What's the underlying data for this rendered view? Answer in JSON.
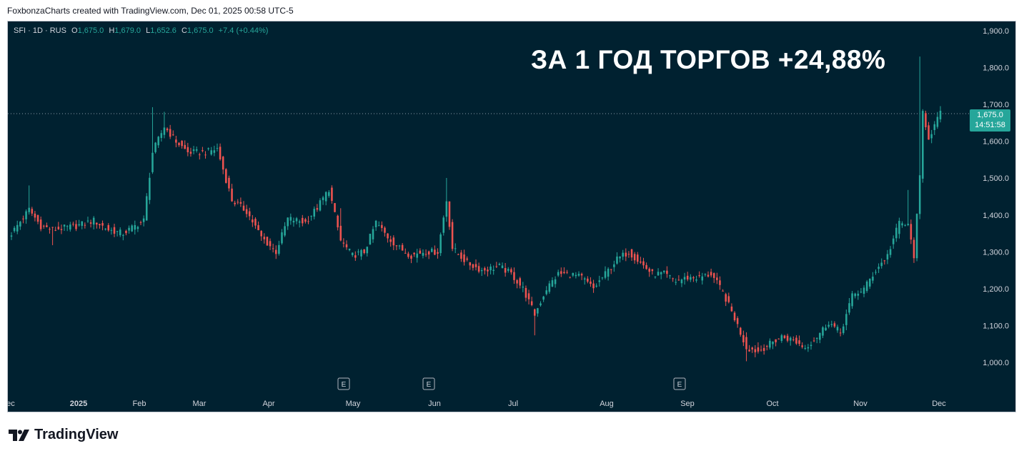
{
  "header": "FoxbonzaCharts created with TradingView.com, Dec 01, 2025 00:58 UTC-5",
  "legend": {
    "symbol": "SFI · 1D · RUS",
    "open_label": "O",
    "open": "1,675.0",
    "high_label": "H",
    "high": "1,679.0",
    "low_label": "L",
    "low": "1,652.6",
    "close_label": "C",
    "close": "1,675.0",
    "change": "+7.4 (+0.44%)"
  },
  "headline": "ЗА 1 ГОД ТОРГОВ +24,88%",
  "price_tag": {
    "price": "1,675.0",
    "countdown": "14:51:58"
  },
  "footer": {
    "brand": "TradingView",
    "icon": "tradingview-logo-icon"
  },
  "colors": {
    "background": "#002130",
    "up": "#26a69a",
    "down": "#ef5350",
    "text": "#d1d4dc"
  },
  "chart_data": {
    "type": "candlestick",
    "y_ticks": [
      "1,900.0",
      "1,800.0",
      "1,700.0",
      "1,600.0",
      "1,500.0",
      "1,400.0",
      "1,300.0",
      "1,200.0",
      "1,100.0",
      "1,000.0"
    ],
    "ylim": [
      980,
      1910
    ],
    "x_ticks": [
      "Dec",
      "2025",
      "Feb",
      "Mar",
      "Apr",
      "May",
      "Jun",
      "Jul",
      "Aug",
      "Sep",
      "Oct",
      "Nov",
      "Dec"
    ],
    "last_price": 1675,
    "earnings_markers": [
      "E",
      "E",
      "E"
    ],
    "anchors": [
      [
        0,
        1350
      ],
      [
        6,
        1415
      ],
      [
        10,
        1370
      ],
      [
        14,
        1360
      ],
      [
        22,
        1370
      ],
      [
        28,
        1385
      ],
      [
        33,
        1360
      ],
      [
        38,
        1350
      ],
      [
        45,
        1385
      ],
      [
        48,
        1570
      ],
      [
        52,
        1640
      ],
      [
        56,
        1600
      ],
      [
        60,
        1570
      ],
      [
        66,
        1570
      ],
      [
        70,
        1580
      ],
      [
        75,
        1440
      ],
      [
        80,
        1410
      ],
      [
        85,
        1340
      ],
      [
        90,
        1300
      ],
      [
        94,
        1390
      ],
      [
        100,
        1380
      ],
      [
        104,
        1420
      ],
      [
        108,
        1470
      ],
      [
        112,
        1330
      ],
      [
        116,
        1290
      ],
      [
        120,
        1300
      ],
      [
        124,
        1380
      ],
      [
        128,
        1340
      ],
      [
        132,
        1310
      ],
      [
        136,
        1290
      ],
      [
        140,
        1300
      ],
      [
        145,
        1300
      ],
      [
        148,
        1440
      ],
      [
        150,
        1310
      ],
      [
        155,
        1270
      ],
      [
        160,
        1250
      ],
      [
        166,
        1260
      ],
      [
        170,
        1240
      ],
      [
        174,
        1200
      ],
      [
        178,
        1130
      ],
      [
        182,
        1200
      ],
      [
        186,
        1240
      ],
      [
        190,
        1240
      ],
      [
        194,
        1230
      ],
      [
        198,
        1200
      ],
      [
        202,
        1240
      ],
      [
        206,
        1280
      ],
      [
        210,
        1300
      ],
      [
        214,
        1270
      ],
      [
        218,
        1240
      ],
      [
        222,
        1240
      ],
      [
        226,
        1220
      ],
      [
        230,
        1230
      ],
      [
        234,
        1230
      ],
      [
        238,
        1240
      ],
      [
        242,
        1190
      ],
      [
        246,
        1120
      ],
      [
        250,
        1040
      ],
      [
        254,
        1030
      ],
      [
        258,
        1050
      ],
      [
        262,
        1070
      ],
      [
        266,
        1060
      ],
      [
        270,
        1040
      ],
      [
        274,
        1070
      ],
      [
        278,
        1110
      ],
      [
        282,
        1080
      ],
      [
        286,
        1180
      ],
      [
        290,
        1200
      ],
      [
        294,
        1250
      ],
      [
        298,
        1290
      ],
      [
        302,
        1380
      ],
      [
        305,
        1370
      ],
      [
        307,
        1290
      ],
      [
        309,
        1500
      ],
      [
        310,
        1680
      ],
      [
        312,
        1610
      ],
      [
        316,
        1675
      ]
    ]
  }
}
